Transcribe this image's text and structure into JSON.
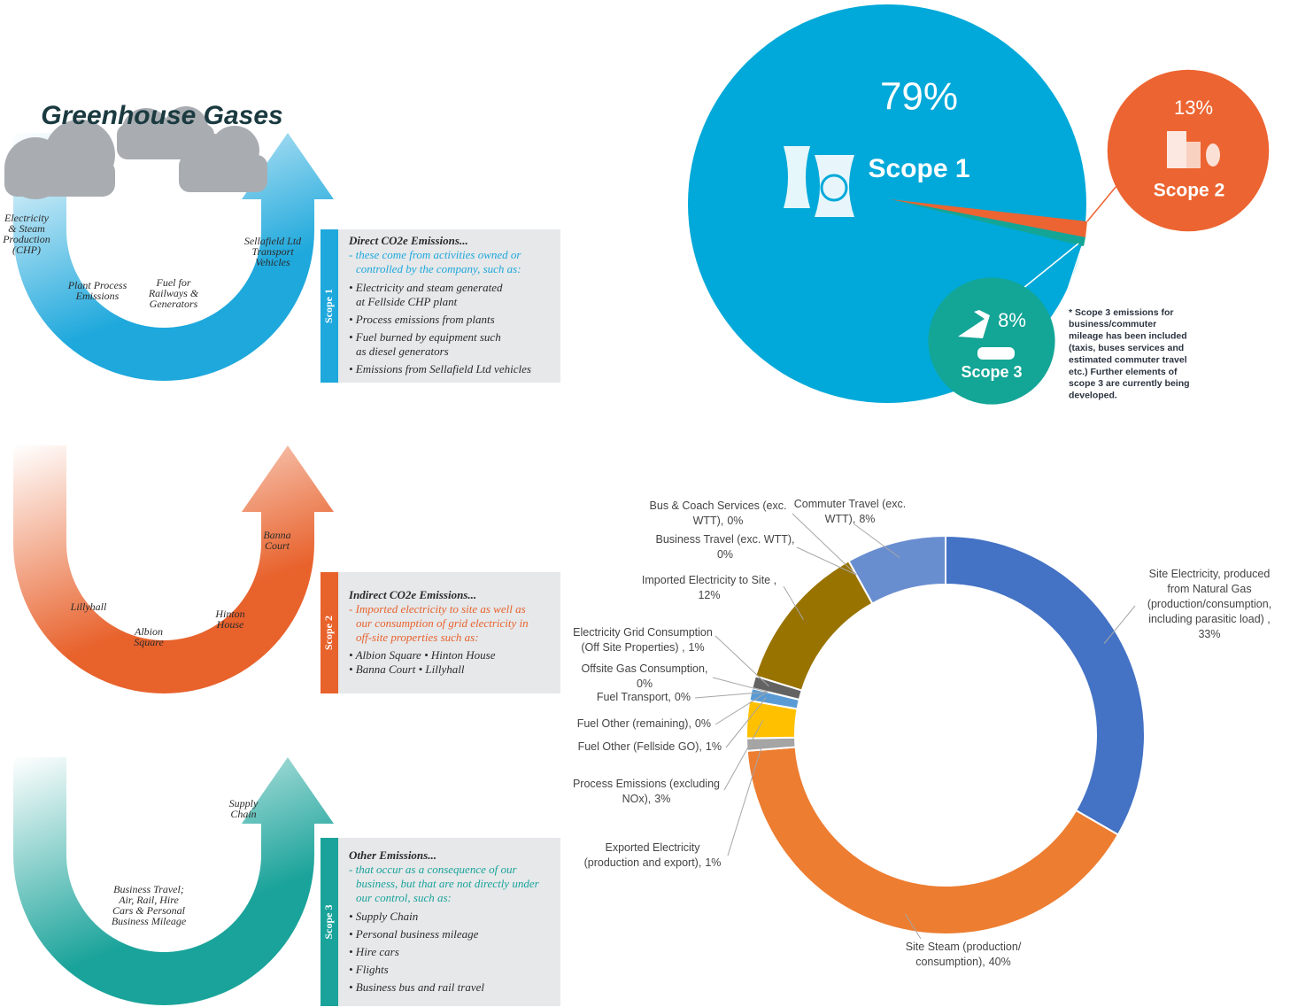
{
  "diagram": {
    "title": "Greenhouse Gases",
    "scopes": [
      {
        "labels": [
          [
            "Electricity",
            "& Steam",
            "Production",
            "(CHP)"
          ],
          [
            "Plant Process",
            "Emissions"
          ],
          [
            "Fuel for",
            "Railways &",
            "Generators"
          ],
          [
            "Sellafield Ltd",
            "Transport",
            "Vehicles"
          ]
        ],
        "box": {
          "tab": "Scope 1",
          "heading": "Direct CO2e Emissions...",
          "intro": [
            "- these come from activities owned or",
            "controlled by the company, such as:"
          ],
          "bullets": [
            "• Electricity and steam generated",
            "at Fellside CHP plant",
            "• Process emissions from plants",
            "• Fuel burned by equipment such",
            "as diesel generators",
            "• Emissions from Sellafield Ltd vehicles"
          ]
        }
      },
      {
        "labels": [
          [
            "Banna",
            "Court"
          ],
          [
            "Lillyhall"
          ],
          [
            "Albion",
            "Square"
          ],
          [
            "Hinton",
            "House"
          ]
        ],
        "box": {
          "tab": "Scope 2",
          "heading": "Indirect CO2e Emissions...",
          "intro": [
            "- Imported electricity to site as well as",
            "our consumption of grid electricity in",
            "off-site properties such as:"
          ],
          "bullets": [
            "• Albion Square  • Hinton House",
            "• Banna Court  • Lillyhall"
          ]
        }
      },
      {
        "labels": [
          [
            "Supply",
            "Chain"
          ],
          [
            "Business Travel;",
            "Air, Rail, Hire",
            "Cars & Personal",
            "Business Mileage"
          ]
        ],
        "box": {
          "tab": "Scope 3",
          "heading": "Other Emissions...",
          "intro": [
            "- that occur as a consequence of our",
            "business, but that are not directly under",
            "our control, such as:"
          ],
          "bullets": [
            "• Supply Chain",
            "• Personal business mileage",
            "• Hire cars",
            "• Flights",
            "• Business bus and rail travel"
          ]
        }
      }
    ]
  },
  "chart_data": [
    {
      "type": "pie",
      "categories": [
        "Scope 1",
        "Scope 2",
        "Scope 3"
      ],
      "values": [
        79,
        13,
        8
      ],
      "value_labels": [
        "79%",
        "13%",
        "8%"
      ],
      "colors": [
        "#00a9d9",
        "#ec6431",
        "#13a596"
      ],
      "note": [
        "* Scope 3 emissions for",
        "business/commuter",
        "mileage has been included",
        "(taxis, buses services and",
        "estimated commuter travel",
        "etc.) Further elements of",
        "scope 3 are currently being",
        "developed."
      ]
    },
    {
      "type": "donut",
      "categories": [
        [
          "Site Electricity, produced",
          "from Natural Gas",
          "(production/consumption,",
          "including parasitic load) ,"
        ],
        [
          "Site Steam (production/",
          "consumption),"
        ],
        [
          "Exported Electricity",
          "(production and export),"
        ],
        [
          "Process Emissions (excluding",
          "NOx),"
        ],
        [
          "Fuel Other (Fellside GO),"
        ],
        [
          "Fuel Other (remaining),"
        ],
        [
          "Fuel Transport,"
        ],
        [
          "Offsite Gas Consumption,"
        ],
        [
          "Electricity Grid Consumption",
          "(Off Site Properties) ,"
        ],
        [
          "Imported Electricity to Site ,"
        ],
        [
          "Business Travel (exc. WTT),"
        ],
        [
          "Bus & Coach Services (exc.",
          "WTT),"
        ],
        [
          "Commuter Travel (exc.",
          "WTT),"
        ]
      ],
      "values": [
        33,
        40,
        1,
        3,
        1,
        0,
        0,
        0,
        1,
        12,
        0,
        0,
        8
      ],
      "value_labels": [
        "33%",
        "40%",
        "1%",
        "3%",
        "1%",
        "0%",
        "0%",
        "0%",
        "1%",
        "12%",
        "0%",
        "0%",
        "8%"
      ],
      "colors": [
        "#4472c4",
        "#ed7d31",
        "#a5a5a5",
        "#ffc000",
        "#5b9bd5",
        "#70ad47",
        "#264478",
        "#9e480e",
        "#636363",
        "#997300",
        "#255e91",
        "#43682b",
        "#698ed0"
      ]
    }
  ]
}
